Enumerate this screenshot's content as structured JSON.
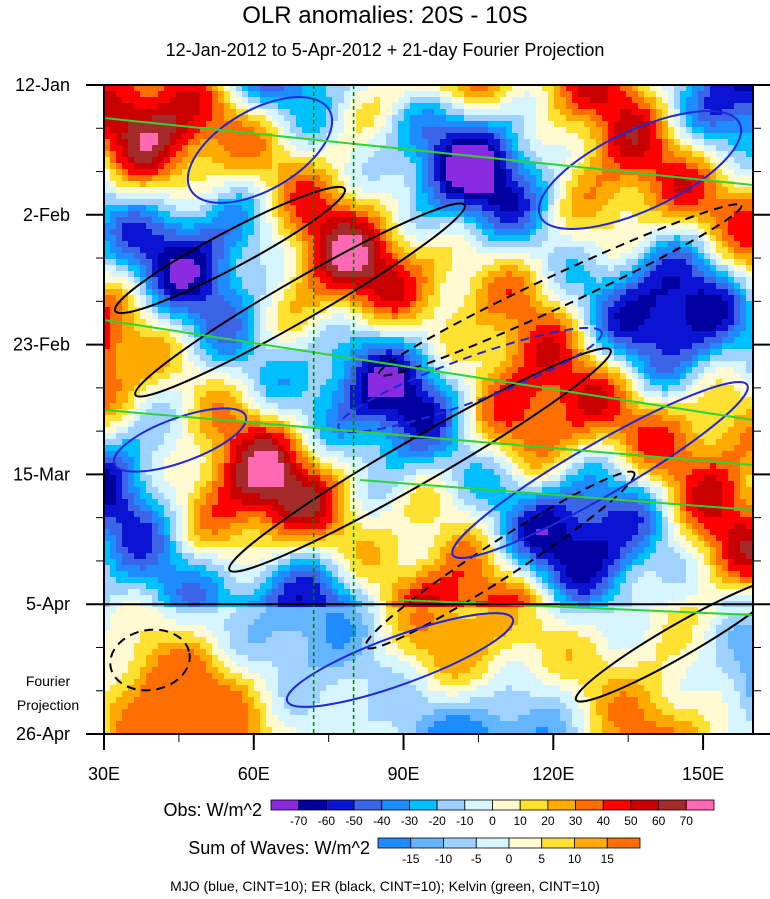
{
  "chart_data": {
    "type": "heatmap",
    "title": "OLR anomalies: 20S - 10S",
    "subtitle": "12-Jan-2012 to 5-Apr-2012 + 21-day Fourier Projection",
    "x_ticks": [
      "30E",
      "60E",
      "90E",
      "120E",
      "150E"
    ],
    "x_tick_values": [
      30,
      60,
      90,
      120,
      150
    ],
    "x_range": [
      30,
      160
    ],
    "y_ticks": [
      "12-Jan",
      "2-Feb",
      "23-Feb",
      "15-Mar",
      "5-Apr",
      "26-Apr"
    ],
    "y_range": [
      "12-Jan",
      "26-Apr"
    ],
    "y_direction": "time increases downward",
    "observation_end": "5-Apr",
    "projection_label": "Fourier Projection",
    "vertical_lines_lon": [
      72,
      80
    ],
    "obs_legend": {
      "label": "Obs: W/m^2",
      "levels": [
        "-70",
        "-60",
        "-50",
        "-40",
        "-30",
        "-20",
        "-10",
        "0",
        "10",
        "20",
        "30",
        "40",
        "50",
        "60",
        "70"
      ],
      "colors": [
        "#8a2be2",
        "#0000a0",
        "#0a14d2",
        "#3c64e6",
        "#1e8cff",
        "#00bfff",
        "#a0d2ff",
        "#d7f5ff",
        "#fffad2",
        "#ffe132",
        "#ffaa00",
        "#ff6e00",
        "#ff0000",
        "#c80000",
        "#a52a2a",
        "#ff69b4"
      ]
    },
    "wave_legend": {
      "label": "Sum of Waves: W/m^2",
      "levels": [
        "-15",
        "-10",
        "-5",
        "0",
        "5",
        "10",
        "15"
      ],
      "colors": [
        "#1e8cff",
        "#64b4ff",
        "#a0d2ff",
        "#d7f5ff",
        "#fffad2",
        "#ffe132",
        "#ffaa00",
        "#ff6e00"
      ]
    },
    "contours": "MJO (blue, CINT=10); ER (black, CINT=10); Kelvin (green, CINT=10)",
    "contour_colors": {
      "mjo": "#1e28dc",
      "er": "#000000",
      "kelvin": "#32d232"
    }
  }
}
